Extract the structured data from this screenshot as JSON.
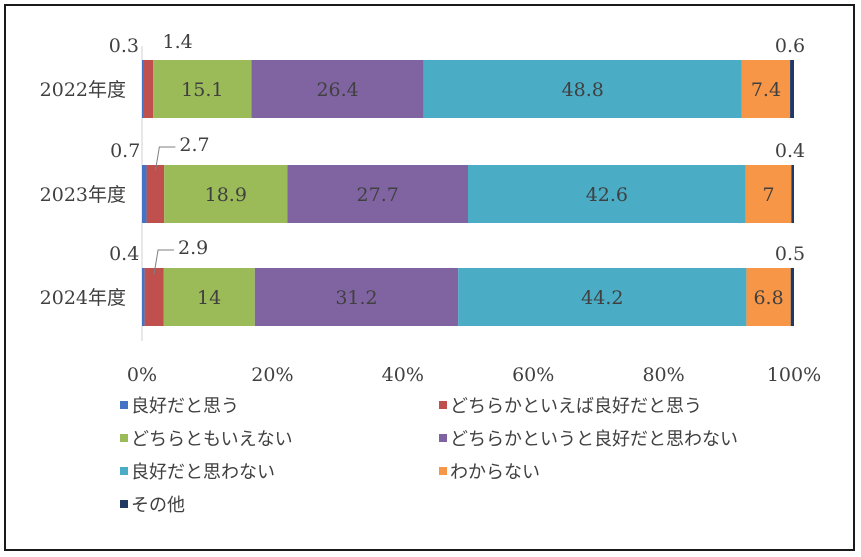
{
  "chart_data": {
    "type": "bar",
    "orientation": "horizontal",
    "stacked": "percent",
    "title": "",
    "xlabel": "",
    "ylabel": "",
    "categories": [
      "2022年度",
      "2023年度",
      "2024年度"
    ],
    "xlim": [
      0,
      100
    ],
    "x_ticks": [
      "0%",
      "20%",
      "40%",
      "60%",
      "80%",
      "100%"
    ],
    "grid": false,
    "legend_position": "bottom",
    "series": [
      {
        "name": "良好だと思う",
        "color": "#4472c4",
        "values": [
          0.3,
          0.7,
          0.4
        ]
      },
      {
        "name": "どちらかといえば良好だと思う",
        "color": "#c0504d",
        "values": [
          1.4,
          2.7,
          2.9
        ]
      },
      {
        "name": "どちらともいえない",
        "color": "#9bbb59",
        "values": [
          15.1,
          18.9,
          14
        ]
      },
      {
        "name": "どちらかというと良好だと思わない",
        "color": "#8064a2",
        "values": [
          26.4,
          27.7,
          31.2
        ]
      },
      {
        "name": "良好だと思わない",
        "color": "#4bacc6",
        "values": [
          48.8,
          42.6,
          44.2
        ]
      },
      {
        "name": "わからない",
        "color": "#f79646",
        "values": [
          7.4,
          7,
          6.8
        ]
      },
      {
        "name": "その他",
        "color": "#1f3864",
        "values": [
          0.6,
          0.4,
          0.5
        ]
      }
    ]
  }
}
